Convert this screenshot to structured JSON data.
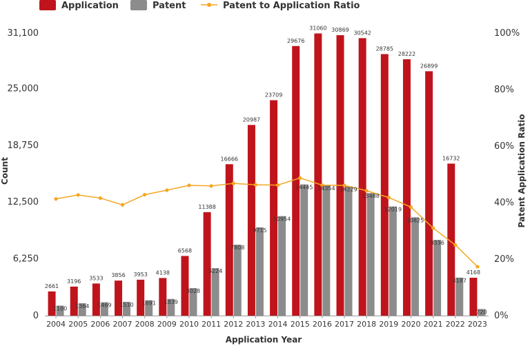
{
  "chart_data": {
    "type": "bar",
    "categories": [
      "2004",
      "2005",
      "2006",
      "2007",
      "2008",
      "2009",
      "2010",
      "2011",
      "2012",
      "2013",
      "2014",
      "2015",
      "2016",
      "2017",
      "2018",
      "2019",
      "2020",
      "2021",
      "2022",
      "2023"
    ],
    "series": [
      {
        "name": "Application",
        "type": "bar",
        "color": "#c0141c",
        "values": [
          2661,
          3196,
          3533,
          3856,
          3953,
          4138,
          6568,
          11388,
          16666,
          20987,
          23709,
          29676,
          31060,
          30869,
          30542,
          28785,
          28222,
          26899,
          16732,
          4168
        ]
      },
      {
        "name": "Patent",
        "type": "bar",
        "color": "#8c8c8c",
        "values": [
          1100,
          1364,
          1469,
          1510,
          1691,
          1839,
          3028,
          5224,
          7808,
          9715,
          10954,
          14445,
          14354,
          14229,
          13488,
          12019,
          10825,
          8336,
          4187,
          720
        ]
      },
      {
        "name": "Patent to Application Ratio",
        "type": "line",
        "color": "#f5a623",
        "axis": "right",
        "values": [
          0.413,
          0.427,
          0.416,
          0.392,
          0.428,
          0.444,
          0.461,
          0.459,
          0.468,
          0.463,
          0.462,
          0.487,
          0.462,
          0.461,
          0.442,
          0.418,
          0.384,
          0.31,
          0.25,
          0.173
        ]
      }
    ],
    "xlabel": "Application Year",
    "ylabel": "Count",
    "y2label": "Patent Application Ratio",
    "y_ticks": [
      "0",
      "6,250",
      "12,500",
      "18,750",
      "25,000",
      "31,100"
    ],
    "y2_ticks": [
      "0%",
      "20%",
      "40%",
      "60%",
      "80%",
      "100%"
    ],
    "ylim": [
      0,
      31100
    ],
    "y2lim": [
      0,
      1
    ],
    "legend_position": "top-left",
    "grid": false
  }
}
